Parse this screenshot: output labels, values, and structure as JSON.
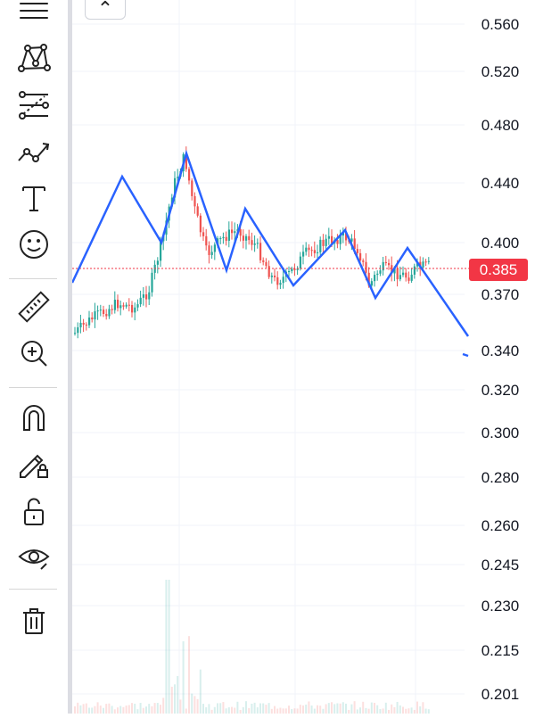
{
  "toolbar": {
    "tools": [
      {
        "name": "lines-tool",
        "icon": "horizontal-lines-icon"
      },
      {
        "name": "pattern-tool",
        "icon": "xabcd-pattern-icon"
      },
      {
        "name": "fib-tool",
        "icon": "fib-retracement-icon"
      },
      {
        "name": "prediction-tool",
        "icon": "path-trend-icon"
      },
      {
        "name": "text-tool",
        "icon": "text-t-icon"
      },
      {
        "name": "icons-tool",
        "icon": "smiley-icon"
      },
      {
        "name": "measure-tool",
        "icon": "ruler-icon"
      },
      {
        "name": "zoom-tool",
        "icon": "zoom-in-icon"
      },
      {
        "name": "magnet-tool",
        "icon": "magnet-icon"
      },
      {
        "name": "lock-drawing-tool",
        "icon": "pencil-lock-icon"
      },
      {
        "name": "lock-all-tool",
        "icon": "unlock-icon"
      },
      {
        "name": "hide-tool",
        "icon": "eye-icon"
      },
      {
        "name": "delete-tool",
        "icon": "trash-icon"
      }
    ],
    "collapse_icon": "chevron-up-icon",
    "collapse_glyph": "⌃"
  },
  "price_axis": {
    "ticks": [
      "0.560",
      "0.520",
      "0.480",
      "0.440",
      "0.400",
      "0.370",
      "0.340",
      "0.320",
      "0.300",
      "0.280",
      "0.260",
      "0.245",
      "0.230",
      "0.215",
      "0.201"
    ]
  },
  "current_price": {
    "label": "0.385",
    "color": "#f23645"
  },
  "colors": {
    "up": "#26a69a",
    "down": "#ef5350",
    "drawing": "#2962ff",
    "price_line": "#f23645",
    "axis_text": "#131722",
    "grid": "#f0f3fa"
  }
}
